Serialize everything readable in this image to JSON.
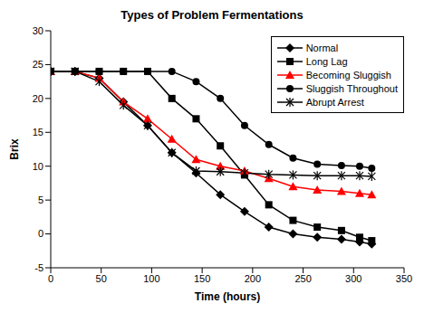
{
  "chart_data": {
    "type": "line",
    "title": "Types of Problem Fermentations",
    "xlabel": "Time (hours)",
    "ylabel": "Brix",
    "x": [
      0,
      24,
      48,
      72,
      96,
      120,
      144,
      168,
      192,
      216,
      240,
      264,
      288,
      306,
      318
    ],
    "series": [
      {
        "name": "Normal",
        "color": "#000000",
        "marker": "diamond",
        "values": [
          24,
          24,
          23,
          19.5,
          16,
          12,
          9,
          5.8,
          3.3,
          1,
          0,
          -0.5,
          -0.8,
          -1.2,
          -1.5
        ]
      },
      {
        "name": "Long Lag",
        "color": "#000000",
        "marker": "square",
        "values": [
          24,
          24,
          24,
          24,
          24,
          20,
          17,
          13,
          8.7,
          4.3,
          2,
          1,
          0.5,
          -0.5,
          -1
        ]
      },
      {
        "name": "Becoming Sluggish",
        "color": "#ff0000",
        "marker": "triangle",
        "values": [
          24,
          24,
          23,
          19.5,
          17,
          14,
          11,
          10,
          9.3,
          8.2,
          7,
          6.5,
          6.3,
          6,
          5.8
        ]
      },
      {
        "name": "Sluggish Throughout",
        "color": "#000000",
        "marker": "circle",
        "values": [
          24,
          24,
          24,
          24,
          24,
          24,
          22.5,
          20,
          16,
          13.2,
          11.2,
          10.3,
          10.1,
          10,
          9.7
        ]
      },
      {
        "name": "Abrupt Arrest",
        "color": "#000000",
        "marker": "star",
        "values": [
          24,
          24,
          22.5,
          19,
          16,
          12,
          9.3,
          9.2,
          9,
          8.8,
          8.7,
          8.6,
          8.6,
          8.6,
          8.5
        ]
      }
    ],
    "xlim": [
      0,
      350
    ],
    "xticks": [
      0,
      50,
      100,
      150,
      200,
      250,
      300,
      350
    ],
    "ylim": [
      -5,
      30
    ],
    "yticks": [
      -5,
      0,
      5,
      10,
      15,
      20,
      25,
      30
    ],
    "grid": false,
    "legend": "upper right"
  }
}
